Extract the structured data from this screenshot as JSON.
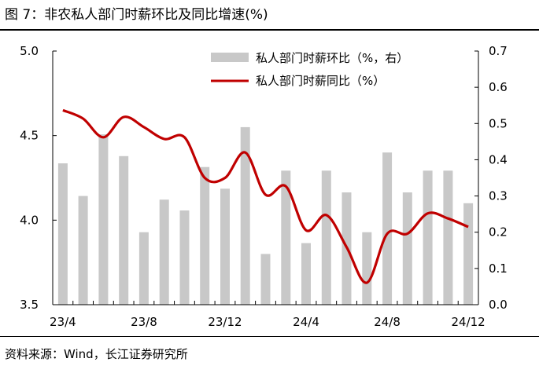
{
  "title": "图 7：非农私人部门时薪环比及同比增速(%)",
  "source": "资料来源：Wind，长江证券研究所",
  "colors": {
    "bar": "#c8c8c8",
    "line": "#c00000",
    "axis": "#000000"
  },
  "chart_data": {
    "type": "bar+line",
    "categories": [
      "23/4",
      "23/5",
      "23/6",
      "23/7",
      "23/8",
      "23/9",
      "23/10",
      "23/11",
      "23/12",
      "24/1",
      "24/2",
      "24/3",
      "24/4",
      "24/5",
      "24/6",
      "24/7",
      "24/8",
      "24/9",
      "24/10",
      "24/11",
      "24/12"
    ],
    "x_tick_labels": [
      "23/4",
      "23/8",
      "23/12",
      "24/4",
      "24/8",
      "24/12"
    ],
    "series": [
      {
        "name": "私人部门时薪环比（%，右）",
        "type": "bar",
        "axis": "right",
        "values": [
          0.39,
          0.3,
          0.47,
          0.41,
          0.2,
          0.29,
          0.26,
          0.38,
          0.32,
          0.49,
          0.14,
          0.37,
          0.17,
          0.37,
          0.31,
          0.2,
          0.42,
          0.31,
          0.37,
          0.37,
          0.28
        ]
      },
      {
        "name": "私人部门时薪同比（%）",
        "type": "line",
        "axis": "left",
        "values": [
          4.65,
          4.6,
          4.49,
          4.61,
          4.55,
          4.48,
          4.49,
          4.25,
          4.25,
          4.4,
          4.15,
          4.2,
          3.94,
          4.03,
          3.84,
          3.63,
          3.92,
          3.92,
          4.04,
          4.01,
          3.96
        ]
      }
    ],
    "y_left": {
      "min": 3.5,
      "max": 5.0,
      "ticks": [
        "3.5",
        "4.0",
        "4.5",
        "5.0"
      ]
    },
    "y_right": {
      "min": 0.0,
      "max": 0.7,
      "ticks": [
        "0.0",
        "0.1",
        "0.2",
        "0.3",
        "0.4",
        "0.5",
        "0.6",
        "0.7"
      ]
    },
    "legend_position": "top-right",
    "grid": false
  }
}
